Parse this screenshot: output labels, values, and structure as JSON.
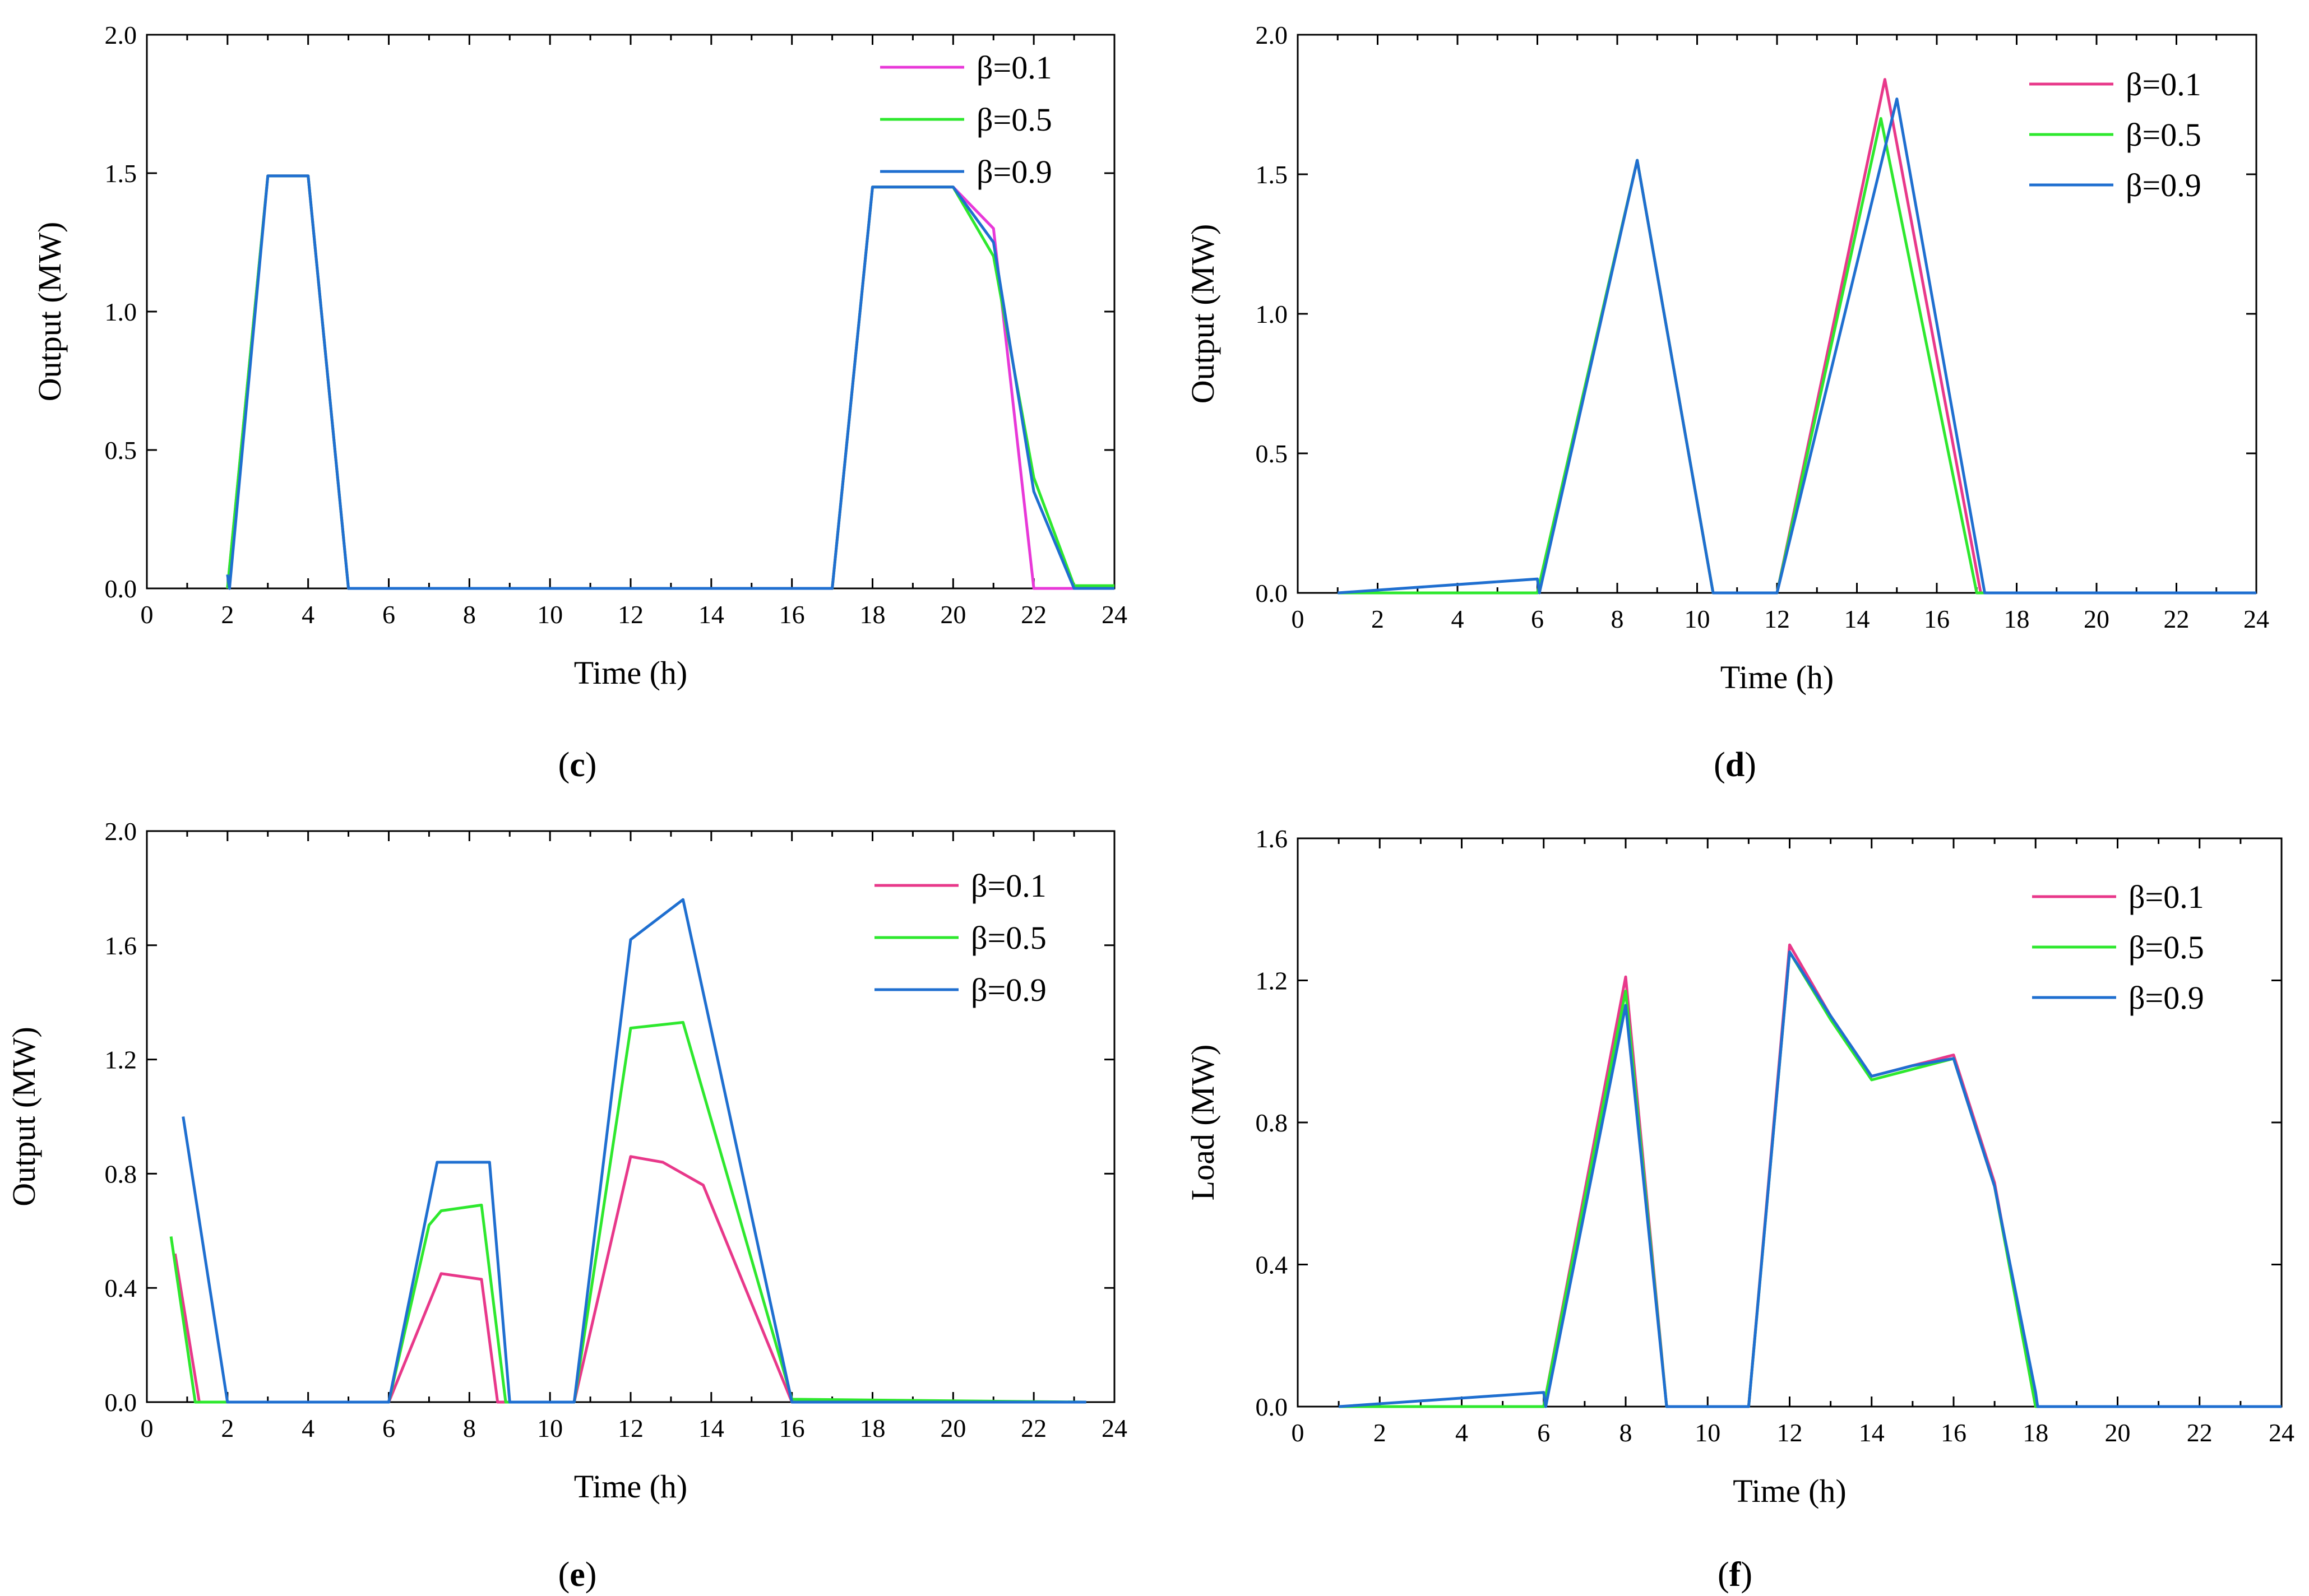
{
  "figure": {
    "colors": {
      "beta_0_1_magenta": "#e838d8",
      "beta_0_1_pink": "#e8388a",
      "beta_0_5": "#2ee82e",
      "beta_0_9": "#1f6fd0",
      "axis": "#000000"
    }
  },
  "chart_data": [
    {
      "id": "c",
      "type": "line",
      "caption": {
        "open": "(",
        "letter": "c",
        "close": ")"
      },
      "xlabel": "Time (h)",
      "ylabel": "Output (MW)",
      "xlim": [
        0,
        24
      ],
      "ylim": [
        0,
        2.0
      ],
      "xticks": [
        0,
        2,
        4,
        6,
        8,
        10,
        12,
        14,
        16,
        18,
        20,
        22,
        24
      ],
      "xtick_labels": [
        "0",
        "2",
        "4",
        "6",
        "8",
        "10",
        "12",
        "14",
        "16",
        "18",
        "20",
        "22",
        "24"
      ],
      "yticks": [
        0,
        0.5,
        1.0,
        1.5,
        2.0
      ],
      "ytick_labels": [
        "0.0",
        "0.5",
        "1.0",
        "1.5",
        "2.0"
      ],
      "grid": false,
      "legend_position": "top-right",
      "series": [
        {
          "name": "β=0.1",
          "color": "#e838d8",
          "points": [
            [
              2,
              0
            ],
            [
              3,
              1.49
            ],
            [
              4,
              1.49
            ],
            [
              5,
              0
            ],
            [
              17,
              0
            ],
            [
              18,
              1.45
            ],
            [
              20,
              1.45
            ],
            [
              21,
              1.3
            ],
            [
              22,
              0
            ],
            [
              23,
              0
            ],
            [
              24,
              0
            ]
          ]
        },
        {
          "name": "β=0.5",
          "color": "#2ee82e",
          "points": [
            [
              2,
              0
            ],
            [
              3,
              1.49
            ],
            [
              4,
              1.49
            ],
            [
              5,
              0
            ],
            [
              17,
              0
            ],
            [
              18,
              1.45
            ],
            [
              20,
              1.45
            ],
            [
              21,
              1.2
            ],
            [
              22,
              0.4
            ],
            [
              23,
              0.01
            ],
            [
              24,
              0.01
            ]
          ]
        },
        {
          "name": "β=0.9",
          "color": "#1f6fd0",
          "points": [
            [
              2,
              0.05
            ],
            [
              2.05,
              0
            ],
            [
              3,
              1.49
            ],
            [
              4,
              1.49
            ],
            [
              5,
              0
            ],
            [
              17,
              0
            ],
            [
              18,
              1.45
            ],
            [
              20,
              1.45
            ],
            [
              21,
              1.25
            ],
            [
              22,
              0.35
            ],
            [
              23,
              0
            ],
            [
              24,
              0
            ]
          ]
        }
      ]
    },
    {
      "id": "d",
      "type": "line",
      "caption": {
        "open": "(",
        "letter": "d",
        "close": ")"
      },
      "xlabel": "Time (h)",
      "ylabel": "Output (MW)",
      "xlim": [
        0,
        24
      ],
      "ylim": [
        0,
        2.0
      ],
      "xticks": [
        0,
        2,
        4,
        6,
        8,
        10,
        12,
        14,
        16,
        18,
        20,
        22,
        24
      ],
      "xtick_labels": [
        "0",
        "2",
        "4",
        "6",
        "8",
        "10",
        "12",
        "14",
        "16",
        "18",
        "20",
        "22",
        "24"
      ],
      "yticks": [
        0,
        0.5,
        1.0,
        1.5,
        2.0
      ],
      "ytick_labels": [
        "0.0",
        "0.5",
        "1.0",
        "1.5",
        "2.0"
      ],
      "grid": false,
      "legend_position": "top-right",
      "series": [
        {
          "name": "β=0.1",
          "color": "#e8388a",
          "points": [
            [
              1,
              0
            ],
            [
              6,
              0
            ],
            [
              8.5,
              1.55
            ],
            [
              10.4,
              0
            ],
            [
              12,
              0
            ],
            [
              14.7,
              1.84
            ],
            [
              17.1,
              0
            ],
            [
              24,
              0
            ]
          ]
        },
        {
          "name": "β=0.5",
          "color": "#2ee82e",
          "points": [
            [
              1,
              0
            ],
            [
              6,
              0
            ],
            [
              8.5,
              1.55
            ],
            [
              10.4,
              0
            ],
            [
              12,
              0
            ],
            [
              14.6,
              1.7
            ],
            [
              17.0,
              0
            ],
            [
              24,
              0
            ]
          ]
        },
        {
          "name": "β=0.9",
          "color": "#1f6fd0",
          "points": [
            [
              1,
              0
            ],
            [
              6,
              0.05
            ],
            [
              6.05,
              0
            ],
            [
              8.5,
              1.55
            ],
            [
              10.4,
              0
            ],
            [
              12,
              0
            ],
            [
              15.0,
              1.77
            ],
            [
              17.2,
              0
            ],
            [
              24,
              0
            ]
          ]
        }
      ]
    },
    {
      "id": "e",
      "type": "line",
      "caption": {
        "open": "(",
        "letter": "e",
        "close": ")"
      },
      "xlabel": "Time (h)",
      "ylabel": "Output (MW)",
      "xlim": [
        0,
        24
      ],
      "ylim": [
        0,
        2.0
      ],
      "xticks": [
        0,
        2,
        4,
        6,
        8,
        10,
        12,
        14,
        16,
        18,
        20,
        22,
        24
      ],
      "xtick_labels": [
        "0",
        "2",
        "4",
        "6",
        "8",
        "10",
        "12",
        "14",
        "16",
        "18",
        "20",
        "22",
        "24"
      ],
      "yticks": [
        0,
        0.4,
        0.8,
        1.2,
        1.6,
        2.0
      ],
      "ytick_labels": [
        "0.0",
        "0.4",
        "0.8",
        "1.2",
        "1.6",
        "2.0"
      ],
      "grid": false,
      "legend_position": "top-right",
      "series": [
        {
          "name": "β=0.1",
          "color": "#e8388a",
          "points": [
            [
              0.7,
              0.52
            ],
            [
              1.3,
              0
            ],
            [
              6,
              0
            ],
            [
              7.3,
              0.45
            ],
            [
              8.3,
              0.43
            ],
            [
              8.7,
              0
            ],
            [
              10.6,
              0
            ],
            [
              12,
              0.86
            ],
            [
              12.8,
              0.84
            ],
            [
              13.8,
              0.76
            ],
            [
              16,
              0
            ],
            [
              23.3,
              0
            ]
          ]
        },
        {
          "name": "β=0.5",
          "color": "#2ee82e",
          "points": [
            [
              0.6,
              0.58
            ],
            [
              1.2,
              0
            ],
            [
              6,
              0
            ],
            [
              7.0,
              0.62
            ],
            [
              7.3,
              0.67
            ],
            [
              8.3,
              0.69
            ],
            [
              8.9,
              0
            ],
            [
              10.6,
              0
            ],
            [
              12,
              1.31
            ],
            [
              13.3,
              1.33
            ],
            [
              16,
              0.01
            ],
            [
              23.3,
              0
            ]
          ]
        },
        {
          "name": "β=0.9",
          "color": "#1f6fd0",
          "points": [
            [
              0.9,
              1.0
            ],
            [
              2,
              0
            ],
            [
              6,
              0
            ],
            [
              7.2,
              0.84
            ],
            [
              8.5,
              0.84
            ],
            [
              9.0,
              0
            ],
            [
              10.6,
              0
            ],
            [
              12,
              1.62
            ],
            [
              13.3,
              1.76
            ],
            [
              16,
              0
            ],
            [
              23.3,
              0
            ]
          ]
        }
      ]
    },
    {
      "id": "f",
      "type": "line",
      "caption": {
        "open": "(",
        "letter": "f",
        "close": ")"
      },
      "xlabel": "Time (h)",
      "ylabel": "Load (MW)",
      "xlim": [
        0,
        24
      ],
      "ylim": [
        0,
        1.6
      ],
      "xticks": [
        0,
        2,
        4,
        6,
        8,
        10,
        12,
        14,
        16,
        18,
        20,
        22,
        24
      ],
      "xtick_labels": [
        "0",
        "2",
        "4",
        "6",
        "8",
        "10",
        "12",
        "14",
        "16",
        "18",
        "20",
        "22",
        "24"
      ],
      "yticks": [
        0,
        0.4,
        0.8,
        1.2,
        1.6
      ],
      "ytick_labels": [
        "0.0",
        "0.4",
        "0.8",
        "1.2",
        "1.6"
      ],
      "grid": false,
      "legend_position": "top-right",
      "series": [
        {
          "name": "β=0.1",
          "color": "#e8388a",
          "points": [
            [
              1,
              0
            ],
            [
              6,
              0
            ],
            [
              8,
              1.21
            ],
            [
              9,
              0
            ],
            [
              11,
              0
            ],
            [
              12,
              1.3
            ],
            [
              13,
              1.1
            ],
            [
              14,
              0.93
            ],
            [
              15,
              0.96
            ],
            [
              16,
              0.99
            ],
            [
              17,
              0.63
            ],
            [
              18,
              0
            ],
            [
              24,
              0
            ]
          ]
        },
        {
          "name": "β=0.5",
          "color": "#2ee82e",
          "points": [
            [
              1,
              0
            ],
            [
              6,
              0
            ],
            [
              8,
              1.17
            ],
            [
              9,
              0
            ],
            [
              11,
              0
            ],
            [
              12,
              1.28
            ],
            [
              13,
              1.09
            ],
            [
              14,
              0.92
            ],
            [
              15,
              0.95
            ],
            [
              16,
              0.98
            ],
            [
              17,
              0.62
            ],
            [
              18,
              0
            ],
            [
              24,
              0
            ]
          ]
        },
        {
          "name": "β=0.9",
          "color": "#1f6fd0",
          "points": [
            [
              1,
              0
            ],
            [
              6,
              0.04
            ],
            [
              6.05,
              0
            ],
            [
              8,
              1.13
            ],
            [
              9,
              0
            ],
            [
              11,
              0
            ],
            [
              12,
              1.28
            ],
            [
              13,
              1.1
            ],
            [
              14,
              0.93
            ],
            [
              15,
              0.96
            ],
            [
              16,
              0.98
            ],
            [
              17,
              0.62
            ],
            [
              18,
              0.04
            ],
            [
              18.05,
              0
            ],
            [
              24,
              0
            ]
          ]
        }
      ]
    }
  ]
}
